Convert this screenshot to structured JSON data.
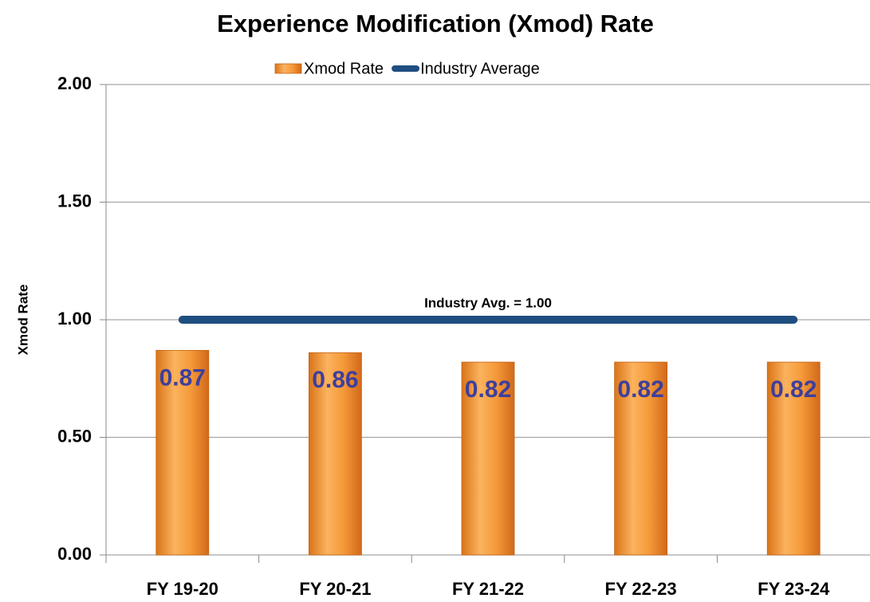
{
  "chart_data": {
    "type": "bar",
    "title": "Experience Modification (Xmod) Rate",
    "y_label": "Xmod Rate",
    "categories": [
      "FY 19-20",
      "FY 20-21",
      "FY 21-22",
      "FY 22-23",
      "FY 23-24"
    ],
    "series": [
      {
        "name": "Xmod Rate",
        "type": "bar",
        "color": "#f0922e",
        "values": [
          0.87,
          0.86,
          0.82,
          0.82,
          0.82
        ]
      },
      {
        "name": "Industry Average",
        "type": "line",
        "color": "#1f4e80",
        "values": [
          1,
          1,
          1,
          1,
          1
        ]
      }
    ],
    "annotation": "Industry Avg. = 1.00",
    "ylim": [
      0,
      2
    ],
    "yticks": [
      {
        "value": 0,
        "label": "0.00"
      },
      {
        "value": 0.5,
        "label": "0.50"
      },
      {
        "value": 1,
        "label": "1.00"
      },
      {
        "value": 1.5,
        "label": "1.50"
      },
      {
        "value": 2,
        "label": "2.00"
      }
    ],
    "grid": true,
    "legend": "top"
  }
}
